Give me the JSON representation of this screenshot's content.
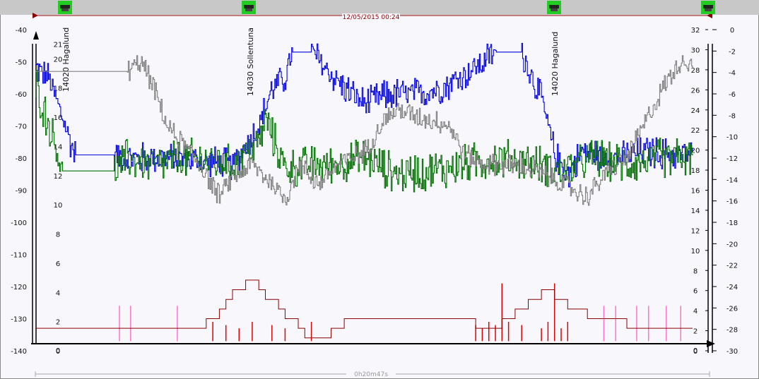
{
  "header": {
    "timestamp": "12/05/2015 00:24",
    "station_icon": "car-station-icon"
  },
  "footer": {
    "duration": "0h20m47s"
  },
  "station_labels": [
    "14020 Hagalund",
    "14030 Sollentuna",
    "14020 Hagalund"
  ],
  "colors": {
    "blue": "#0000e0",
    "green": "#007000",
    "gray": "#808080",
    "darkred": "#8b0000",
    "red": "#e00000",
    "pink": "#ff70d0",
    "marker_green": "#22cc22"
  },
  "chart_data": {
    "type": "line",
    "axes": {
      "left_outer": {
        "ylim": [
          -140,
          -40
        ],
        "ticks": [
          -40,
          -50,
          -60,
          -70,
          -80,
          -90,
          -100,
          -110,
          -120,
          -130,
          -140
        ]
      },
      "left_inner": {
        "ylim": [
          0,
          22
        ],
        "ticks": [
          21,
          20,
          18,
          16,
          14,
          12,
          10,
          8,
          6,
          4,
          2,
          0
        ]
      },
      "right_inner": {
        "ylim": [
          0,
          32
        ],
        "ticks": [
          32,
          30,
          28,
          26,
          24,
          22,
          20,
          18,
          16,
          14,
          12,
          10,
          8,
          6,
          4,
          2,
          0
        ]
      },
      "right_outer": {
        "ylim": [
          -30,
          0
        ],
        "ticks": [
          0,
          -2,
          -4,
          -6,
          -8,
          -10,
          -12,
          -14,
          -16,
          -18,
          -20,
          -22,
          -24,
          -26,
          -28,
          -30
        ]
      }
    },
    "x": {
      "range": [
        0,
        1
      ],
      "label": "0h20m47s"
    },
    "series": [
      {
        "color": "blue",
        "values": [
          [
            0.0,
            -52
          ],
          [
            0.02,
            -55
          ],
          [
            0.06,
            -79
          ],
          [
            0.12,
            -79
          ],
          [
            0.14,
            -80
          ],
          [
            0.2,
            -80
          ],
          [
            0.26,
            -81
          ],
          [
            0.3,
            -82
          ],
          [
            0.34,
            -70
          ],
          [
            0.36,
            -58
          ],
          [
            0.38,
            -55
          ],
          [
            0.39,
            -47
          ],
          [
            0.42,
            -47
          ],
          [
            0.44,
            -52
          ],
          [
            0.47,
            -58
          ],
          [
            0.5,
            -63
          ],
          [
            0.54,
            -60
          ],
          [
            0.58,
            -60
          ],
          [
            0.62,
            -58
          ],
          [
            0.66,
            -53
          ],
          [
            0.7,
            -47
          ],
          [
            0.74,
            -47
          ],
          [
            0.77,
            -62
          ],
          [
            0.79,
            -79
          ],
          [
            0.81,
            -85
          ],
          [
            0.83,
            -78
          ],
          [
            0.88,
            -80
          ],
          [
            0.93,
            -78
          ],
          [
            0.98,
            -79
          ]
        ]
      },
      {
        "color": "green",
        "values": [
          [
            0.0,
            -57
          ],
          [
            0.03,
            -76
          ],
          [
            0.04,
            -84
          ],
          [
            0.12,
            -84
          ],
          [
            0.14,
            -80
          ],
          [
            0.18,
            -82
          ],
          [
            0.24,
            -80
          ],
          [
            0.3,
            -82
          ],
          [
            0.34,
            -75
          ],
          [
            0.35,
            -68
          ],
          [
            0.38,
            -83
          ],
          [
            0.45,
            -82
          ],
          [
            0.5,
            -80
          ],
          [
            0.55,
            -85
          ],
          [
            0.6,
            -84
          ],
          [
            0.65,
            -82
          ],
          [
            0.7,
            -80
          ],
          [
            0.75,
            -81
          ],
          [
            0.8,
            -84
          ],
          [
            0.85,
            -80
          ],
          [
            0.9,
            -82
          ],
          [
            0.95,
            -80
          ],
          [
            0.98,
            -80
          ]
        ]
      },
      {
        "color": "gray",
        "values": [
          [
            0.0,
            -53
          ],
          [
            0.08,
            -53
          ],
          [
            0.14,
            -53
          ],
          [
            0.16,
            -50
          ],
          [
            0.18,
            -58
          ],
          [
            0.2,
            -70
          ],
          [
            0.25,
            -82
          ],
          [
            0.28,
            -92
          ],
          [
            0.3,
            -86
          ],
          [
            0.33,
            -82
          ],
          [
            0.36,
            -88
          ],
          [
            0.38,
            -93
          ],
          [
            0.4,
            -82
          ],
          [
            0.43,
            -88
          ],
          [
            0.46,
            -82
          ],
          [
            0.5,
            -78
          ],
          [
            0.53,
            -68
          ],
          [
            0.55,
            -65
          ],
          [
            0.58,
            -67
          ],
          [
            0.6,
            -68
          ],
          [
            0.63,
            -70
          ],
          [
            0.65,
            -78
          ],
          [
            0.68,
            -82
          ],
          [
            0.72,
            -82
          ],
          [
            0.76,
            -84
          ],
          [
            0.8,
            -88
          ],
          [
            0.84,
            -92
          ],
          [
            0.87,
            -84
          ],
          [
            0.9,
            -80
          ],
          [
            0.93,
            -68
          ],
          [
            0.96,
            -56
          ],
          [
            0.98,
            -50
          ]
        ]
      },
      {
        "color": "darkred",
        "step": true,
        "values": [
          [
            0.0,
            -133
          ],
          [
            0.24,
            -133
          ],
          [
            0.26,
            -130
          ],
          [
            0.28,
            -127
          ],
          [
            0.29,
            -124
          ],
          [
            0.3,
            -121
          ],
          [
            0.32,
            -118
          ],
          [
            0.34,
            -121
          ],
          [
            0.35,
            -124
          ],
          [
            0.37,
            -127
          ],
          [
            0.38,
            -130
          ],
          [
            0.4,
            -133
          ],
          [
            0.41,
            -136
          ],
          [
            0.45,
            -133
          ],
          [
            0.47,
            -130
          ],
          [
            0.6,
            -130
          ],
          [
            0.67,
            -133
          ],
          [
            0.71,
            -130
          ],
          [
            0.73,
            -127
          ],
          [
            0.75,
            -124
          ],
          [
            0.77,
            -121
          ],
          [
            0.79,
            -124
          ],
          [
            0.81,
            -127
          ],
          [
            0.84,
            -130
          ],
          [
            0.9,
            -133
          ],
          [
            0.98,
            -133
          ]
        ]
      }
    ],
    "bars_red": [
      0.27,
      0.29,
      0.31,
      0.33,
      0.36,
      0.38,
      0.42,
      0.67,
      0.68,
      0.69,
      0.7,
      0.71,
      0.72,
      0.74,
      0.77,
      0.78,
      0.79,
      0.8,
      0.81
    ],
    "bars_pink": [
      0.128,
      0.145,
      0.216,
      0.865,
      0.883,
      0.915,
      0.933,
      0.96,
      0.982
    ]
  }
}
